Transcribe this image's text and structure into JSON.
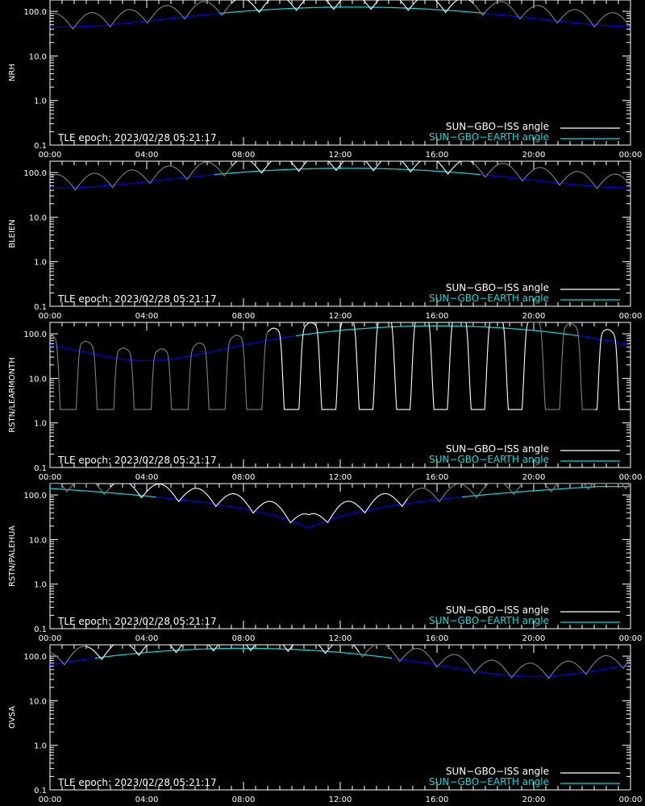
{
  "colors": {
    "background": "#000000",
    "axes": "#ffffff",
    "iss_angle": "#ffffff",
    "iss_angle_gap": "#808080",
    "earth_angle_above": "#00e0e0",
    "earth_angle_below": "#0000ff"
  },
  "epoch_text": "TLE epoch: 2023/02/28 05:21:17",
  "legend": {
    "iss": "SUN−GBO−ISS angle",
    "earth": "SUN−GBO−EARTH angle"
  },
  "chart_data": [
    {
      "type": "line",
      "name": "NRH",
      "ylabel": "NRH",
      "yscale": "log",
      "ylim": [
        0.1,
        180
      ],
      "xlim": [
        0,
        24
      ],
      "xticks": [
        "00:00",
        "04:00",
        "08:00",
        "12:00",
        "16:00",
        "20:00",
        "00:00"
      ],
      "yticks": [
        "0.1",
        "1.0",
        "10.0",
        "100.0"
      ],
      "earth": {
        "model": "cos",
        "center": 12.5,
        "min": 45,
        "max": 125
      },
      "iss": {
        "period": 1.54,
        "phase": 0.95,
        "amp": 1.0,
        "sharp": 1.0,
        "floor": null,
        "gap_hours": [
          [
            0,
            7.5
          ],
          [
            17.5,
            24
          ]
        ]
      },
      "series": [
        {
          "name": "SUN−GBO−ISS angle"
        },
        {
          "name": "SUN−GBO−EARTH angle"
        }
      ]
    },
    {
      "type": "line",
      "name": "BLEIEN",
      "ylabel": "BLEIEN",
      "yscale": "log",
      "ylim": [
        0.1,
        180
      ],
      "xlim": [
        0,
        24
      ],
      "xticks": [
        "00:00",
        "04:00",
        "08:00",
        "12:00",
        "16:00",
        "20:00",
        "00:00"
      ],
      "yticks": [
        "0.1",
        "1.0",
        "10.0",
        "100.0"
      ],
      "earth": {
        "model": "cos",
        "center": 12.3,
        "min": 45,
        "max": 125
      },
      "iss": {
        "period": 1.54,
        "phase": 1.05,
        "amp": 1.0,
        "sharp": 1.0,
        "floor": null,
        "gap_hours": [
          [
            0,
            7.5
          ],
          [
            17.5,
            24
          ]
        ]
      },
      "series": [
        {
          "name": "SUN−GBO−ISS angle"
        },
        {
          "name": "SUN−GBO−EARTH angle"
        }
      ]
    },
    {
      "type": "line",
      "name": "RSTN/LEARMONTH",
      "ylabel": "RSTN/LEARMONTH",
      "yscale": "log",
      "ylim": [
        0.1,
        180
      ],
      "xlim": [
        0,
        24
      ],
      "xticks": [
        "00:00",
        "04:00",
        "08:00",
        "12:00",
        "16:00",
        "20:00",
        "00:00"
      ],
      "yticks": [
        "0.1",
        "1.0",
        "10.0",
        "100.0"
      ],
      "earth": {
        "model": "cos",
        "center": 16.0,
        "min": 25,
        "max": 150
      },
      "iss": {
        "period": 1.54,
        "phase": 0.75,
        "amp": 2.3,
        "sharp": 6.0,
        "floor": 2,
        "gap_hours": [
          [
            0,
            9
          ],
          [
            19.8,
            22.5
          ]
        ]
      },
      "series": [
        {
          "name": "SUN−GBO−ISS angle"
        },
        {
          "name": "SUN−GBO−EARTH angle"
        }
      ]
    },
    {
      "type": "line",
      "name": "RSTN/PALEHUA",
      "ylabel": "RSTN/PALEHUA",
      "yscale": "log",
      "ylim": [
        0.1,
        180
      ],
      "xlim": [
        0,
        24
      ],
      "xticks": [
        "00:00",
        "04:00",
        "08:00",
        "12:00",
        "16:00",
        "20:00",
        "00:00"
      ],
      "yticks": [
        "0.1",
        "1.0",
        "10.0",
        "100.0"
      ],
      "earth": {
        "model": "abs",
        "center": 10.7,
        "min": 18,
        "max": 155
      },
      "iss": {
        "period": 1.54,
        "phase": 0.7,
        "amp": 1.0,
        "sharp": 1.0,
        "floor": null,
        "gap_hours": [
          [
            0,
            2.5
          ],
          [
            14.8,
            24
          ]
        ]
      },
      "series": [
        {
          "name": "SUN−GBO−ISS angle"
        },
        {
          "name": "SUN−GBO−EARTH angle"
        }
      ]
    },
    {
      "type": "line",
      "name": "OVSA",
      "ylabel": "OVSA",
      "yscale": "log",
      "ylim": [
        0.1,
        180
      ],
      "xlim": [
        0,
        24
      ],
      "xticks": [
        "00:00",
        "04:00",
        "08:00",
        "12:00",
        "16:00",
        "20:00",
        "00:00"
      ],
      "yticks": [
        "0.1",
        "1.0",
        "10.0",
        "100.0"
      ],
      "earth": {
        "model": "cos",
        "center": 8.0,
        "min": 35,
        "max": 150
      },
      "iss": {
        "period": 1.54,
        "phase": 0.6,
        "amp": 1.0,
        "sharp": 1.0,
        "floor": null,
        "gap_hours": [
          [
            0,
            1.5
          ],
          [
            12.8,
            24
          ]
        ]
      },
      "series": [
        {
          "name": "SUN−GBO−ISS angle"
        },
        {
          "name": "SUN−GBO−EARTH angle"
        }
      ]
    }
  ]
}
